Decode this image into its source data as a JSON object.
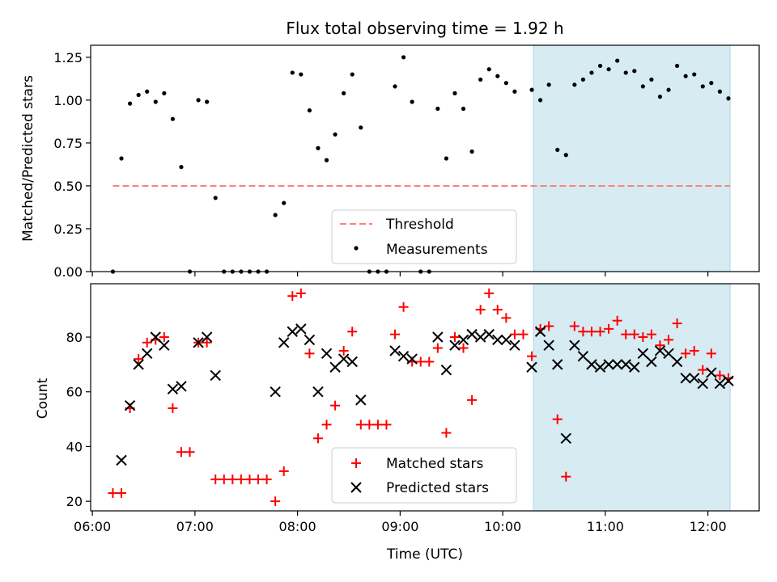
{
  "chart_data": {
    "type": "scatter",
    "title": "Flux total observing time = 1.92 h",
    "xlabel": "Time (UTC)",
    "x_ticks": [
      "06:00",
      "07:00",
      "08:00",
      "09:00",
      "10:00",
      "11:00",
      "12:00"
    ],
    "xlim": [
      "05:59",
      "12:30"
    ],
    "highlight_span": {
      "start": "10:18",
      "end": "12:13",
      "color": "#add8e6"
    },
    "panels": [
      {
        "ylabel": "Matched/Predicted stars",
        "ylim": [
          0,
          1.32
        ],
        "y_ticks": [
          "0.00",
          "0.25",
          "0.50",
          "0.75",
          "1.00",
          "1.25"
        ],
        "legend": {
          "placement": "lower-center",
          "entries": [
            "Threshold",
            "Measurements"
          ]
        },
        "threshold": {
          "name": "Threshold",
          "value": 0.5,
          "x_start": "06:12",
          "x_end": "12:13",
          "color": "#ff7f7f"
        },
        "series": [
          {
            "name": "Measurements",
            "marker": "dot",
            "color": "#000000",
            "points": [
              [
                "06:12",
                0.0
              ],
              [
                "06:17",
                0.66
              ],
              [
                "06:22",
                0.98
              ],
              [
                "06:27",
                1.03
              ],
              [
                "06:32",
                1.05
              ],
              [
                "06:37",
                0.99
              ],
              [
                "06:42",
                1.04
              ],
              [
                "06:47",
                0.89
              ],
              [
                "06:52",
                0.61
              ],
              [
                "06:57",
                0.0
              ],
              [
                "07:02",
                1.0
              ],
              [
                "07:07",
                0.99
              ],
              [
                "07:12",
                0.43
              ],
              [
                "07:17",
                0.0
              ],
              [
                "07:22",
                0.0
              ],
              [
                "07:27",
                0.0
              ],
              [
                "07:32",
                0.0
              ],
              [
                "07:37",
                0.0
              ],
              [
                "07:42",
                0.0
              ],
              [
                "07:47",
                0.33
              ],
              [
                "07:52",
                0.4
              ],
              [
                "07:57",
                1.16
              ],
              [
                "08:02",
                1.15
              ],
              [
                "08:07",
                0.94
              ],
              [
                "08:12",
                0.72
              ],
              [
                "08:17",
                0.65
              ],
              [
                "08:22",
                0.8
              ],
              [
                "08:27",
                1.04
              ],
              [
                "08:32",
                1.15
              ],
              [
                "08:37",
                0.84
              ],
              [
                "08:42",
                0.0
              ],
              [
                "08:47",
                0.0
              ],
              [
                "08:52",
                0.0
              ],
              [
                "08:57",
                1.08
              ],
              [
                "09:02",
                1.25
              ],
              [
                "09:07",
                0.99
              ],
              [
                "09:12",
                0.0
              ],
              [
                "09:17",
                0.0
              ],
              [
                "09:22",
                0.95
              ],
              [
                "09:27",
                0.66
              ],
              [
                "09:32",
                1.04
              ],
              [
                "09:37",
                0.95
              ],
              [
                "09:42",
                0.7
              ],
              [
                "09:47",
                1.12
              ],
              [
                "09:52",
                1.18
              ],
              [
                "09:57",
                1.14
              ],
              [
                "10:02",
                1.1
              ],
              [
                "10:07",
                1.05
              ],
              [
                "10:17",
                1.06
              ],
              [
                "10:22",
                1.0
              ],
              [
                "10:27",
                1.09
              ],
              [
                "10:32",
                0.71
              ],
              [
                "10:37",
                0.68
              ],
              [
                "10:42",
                1.09
              ],
              [
                "10:47",
                1.12
              ],
              [
                "10:52",
                1.16
              ],
              [
                "10:57",
                1.2
              ],
              [
                "11:02",
                1.18
              ],
              [
                "11:07",
                1.23
              ],
              [
                "11:12",
                1.16
              ],
              [
                "11:17",
                1.17
              ],
              [
                "11:22",
                1.08
              ],
              [
                "11:27",
                1.12
              ],
              [
                "11:32",
                1.02
              ],
              [
                "11:37",
                1.06
              ],
              [
                "11:42",
                1.2
              ],
              [
                "11:47",
                1.14
              ],
              [
                "11:52",
                1.15
              ],
              [
                "11:57",
                1.08
              ],
              [
                "12:02",
                1.1
              ],
              [
                "12:07",
                1.05
              ],
              [
                "12:12",
                1.01
              ]
            ]
          }
        ]
      },
      {
        "ylabel": "Count",
        "ylim": [
          16.5,
          99.5
        ],
        "y_ticks": [
          "20",
          "40",
          "60",
          "80"
        ],
        "legend": {
          "placement": "lower-center",
          "entries": [
            "Matched stars",
            "Predicted stars"
          ]
        },
        "series": [
          {
            "name": "Matched stars",
            "marker": "plus",
            "color": "#ff0000",
            "points": [
              [
                "06:12",
                23
              ],
              [
                "06:17",
                23
              ],
              [
                "06:22",
                54
              ],
              [
                "06:27",
                72
              ],
              [
                "06:32",
                78
              ],
              [
                "06:37",
                79
              ],
              [
                "06:42",
                80
              ],
              [
                "06:47",
                54
              ],
              [
                "06:52",
                38
              ],
              [
                "06:57",
                38
              ],
              [
                "07:02",
                78
              ],
              [
                "07:07",
                78
              ],
              [
                "07:12",
                28
              ],
              [
                "07:17",
                28
              ],
              [
                "07:22",
                28
              ],
              [
                "07:27",
                28
              ],
              [
                "07:32",
                28
              ],
              [
                "07:37",
                28
              ],
              [
                "07:42",
                28
              ],
              [
                "07:47",
                20
              ],
              [
                "07:52",
                31
              ],
              [
                "07:57",
                95
              ],
              [
                "08:02",
                96
              ],
              [
                "08:07",
                74
              ],
              [
                "08:12",
                43
              ],
              [
                "08:17",
                48
              ],
              [
                "08:22",
                55
              ],
              [
                "08:27",
                75
              ],
              [
                "08:32",
                82
              ],
              [
                "08:37",
                48
              ],
              [
                "08:42",
                48
              ],
              [
                "08:47",
                48
              ],
              [
                "08:52",
                48
              ],
              [
                "08:57",
                81
              ],
              [
                "09:02",
                91
              ],
              [
                "09:07",
                71
              ],
              [
                "09:12",
                71
              ],
              [
                "09:17",
                71
              ],
              [
                "09:22",
                76
              ],
              [
                "09:27",
                45
              ],
              [
                "09:32",
                80
              ],
              [
                "09:37",
                76
              ],
              [
                "09:42",
                57
              ],
              [
                "09:47",
                90
              ],
              [
                "09:52",
                96
              ],
              [
                "09:57",
                90
              ],
              [
                "10:02",
                87
              ],
              [
                "10:07",
                81
              ],
              [
                "10:12",
                81
              ],
              [
                "10:17",
                73
              ],
              [
                "10:22",
                83
              ],
              [
                "10:27",
                84
              ],
              [
                "10:32",
                50
              ],
              [
                "10:37",
                29
              ],
              [
                "10:42",
                84
              ],
              [
                "10:47",
                82
              ],
              [
                "10:52",
                82
              ],
              [
                "10:57",
                82
              ],
              [
                "11:02",
                83
              ],
              [
                "11:07",
                86
              ],
              [
                "11:12",
                81
              ],
              [
                "11:17",
                81
              ],
              [
                "11:22",
                80
              ],
              [
                "11:27",
                81
              ],
              [
                "11:32",
                77
              ],
              [
                "11:37",
                79
              ],
              [
                "11:42",
                85
              ],
              [
                "11:47",
                74
              ],
              [
                "11:52",
                75
              ],
              [
                "11:57",
                68
              ],
              [
                "12:02",
                74
              ],
              [
                "12:07",
                66
              ],
              [
                "12:12",
                65
              ]
            ]
          },
          {
            "name": "Predicted stars",
            "marker": "x",
            "color": "#000000",
            "points": [
              [
                "06:17",
                35
              ],
              [
                "06:22",
                55
              ],
              [
                "06:27",
                70
              ],
              [
                "06:32",
                74
              ],
              [
                "06:37",
                80
              ],
              [
                "06:42",
                77
              ],
              [
                "06:47",
                61
              ],
              [
                "06:52",
                62
              ],
              [
                "07:02",
                78
              ],
              [
                "07:07",
                80
              ],
              [
                "07:12",
                66
              ],
              [
                "07:47",
                60
              ],
              [
                "07:52",
                78
              ],
              [
                "07:57",
                82
              ],
              [
                "08:02",
                83
              ],
              [
                "08:07",
                79
              ],
              [
                "08:12",
                60
              ],
              [
                "08:17",
                74
              ],
              [
                "08:22",
                69
              ],
              [
                "08:27",
                72
              ],
              [
                "08:32",
                71
              ],
              [
                "08:37",
                57
              ],
              [
                "08:57",
                75
              ],
              [
                "09:02",
                73
              ],
              [
                "09:07",
                72
              ],
              [
                "09:22",
                80
              ],
              [
                "09:27",
                68
              ],
              [
                "09:32",
                77
              ],
              [
                "09:37",
                79
              ],
              [
                "09:42",
                81
              ],
              [
                "09:47",
                80
              ],
              [
                "09:52",
                81
              ],
              [
                "09:57",
                79
              ],
              [
                "10:02",
                79
              ],
              [
                "10:07",
                77
              ],
              [
                "10:17",
                69
              ],
              [
                "10:22",
                82
              ],
              [
                "10:27",
                77
              ],
              [
                "10:32",
                70
              ],
              [
                "10:37",
                43
              ],
              [
                "10:42",
                77
              ],
              [
                "10:47",
                73
              ],
              [
                "10:52",
                70
              ],
              [
                "10:57",
                69
              ],
              [
                "11:02",
                70
              ],
              [
                "11:07",
                70
              ],
              [
                "11:12",
                70
              ],
              [
                "11:17",
                69
              ],
              [
                "11:22",
                74
              ],
              [
                "11:27",
                71
              ],
              [
                "11:32",
                75
              ],
              [
                "11:37",
                74
              ],
              [
                "11:42",
                71
              ],
              [
                "11:47",
                65
              ],
              [
                "11:52",
                65
              ],
              [
                "11:57",
                63
              ],
              [
                "12:02",
                67
              ],
              [
                "12:07",
                63
              ],
              [
                "12:12",
                64
              ]
            ]
          }
        ]
      }
    ]
  }
}
